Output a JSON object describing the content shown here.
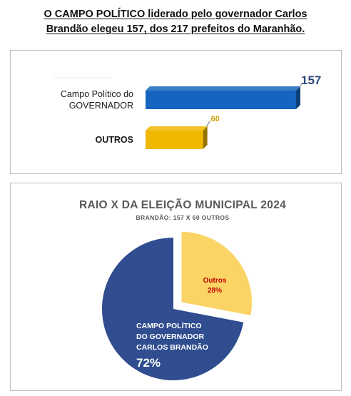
{
  "headline": {
    "line1": "O CAMPO POLÍTICO liderado pelo governador Carlos",
    "line2": "Brandão elegeu 157, dos 217 prefeitos do Maranhão."
  },
  "chart_data": [
    {
      "type": "bar",
      "orientation": "horizontal",
      "categories": [
        [
          "Campo Político do",
          "GOVERNADOR"
        ],
        [
          "OUTROS"
        ]
      ],
      "values": [
        157,
        60
      ],
      "data_labels": [
        "157",
        "60"
      ],
      "xlim": [
        0,
        157
      ],
      "colors": [
        "#1565c0",
        "#f0b800"
      ],
      "label_colors": [
        "#2e4a7a",
        "#c9a000"
      ],
      "grid": false
    },
    {
      "type": "pie",
      "title": "RAIO X DA ELEIÇÃO MUNICIPAL 2024",
      "subtitle": "BRANDÃO: 157 X 60 OUTROS",
      "slices": [
        {
          "label_lines": [
            "CAMPO POLÍTICO",
            "DO GOVERNADOR",
            "CARLOS BRANDÃO"
          ],
          "percent_label": "72%",
          "value": 72,
          "color": "#2f4d8f"
        },
        {
          "label_lines": [
            "Outros"
          ],
          "percent_label": "28%",
          "value": 28,
          "color": "#fad464",
          "exploded": true
        }
      ]
    }
  ]
}
